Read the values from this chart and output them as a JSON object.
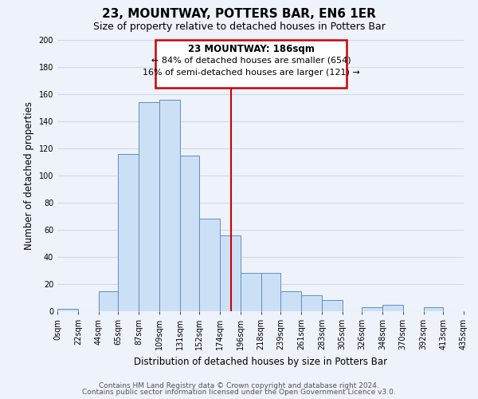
{
  "title": "23, MOUNTWAY, POTTERS BAR, EN6 1ER",
  "subtitle": "Size of property relative to detached houses in Potters Bar",
  "xlabel": "Distribution of detached houses by size in Potters Bar",
  "ylabel": "Number of detached properties",
  "bar_edges": [
    0,
    22,
    44,
    65,
    87,
    109,
    131,
    152,
    174,
    196,
    218,
    239,
    261,
    283,
    305,
    326,
    348,
    370,
    392,
    413,
    435
  ],
  "bar_heights": [
    2,
    0,
    15,
    116,
    154,
    156,
    115,
    68,
    56,
    28,
    28,
    15,
    12,
    8,
    0,
    3,
    5,
    0,
    3,
    0
  ],
  "bar_color": "#cce0f5",
  "bar_edge_color": "#5b8ec5",
  "vline_x": 186,
  "vline_color": "#cc0000",
  "annotation_lines": [
    "23 MOUNTWAY: 186sqm",
    "← 84% of detached houses are smaller (654)",
    "16% of semi-detached houses are larger (121) →"
  ],
  "xlim": [
    0,
    435
  ],
  "ylim": [
    0,
    200
  ],
  "xtick_labels": [
    "0sqm",
    "22sqm",
    "44sqm",
    "65sqm",
    "87sqm",
    "109sqm",
    "131sqm",
    "152sqm",
    "174sqm",
    "196sqm",
    "218sqm",
    "239sqm",
    "261sqm",
    "283sqm",
    "305sqm",
    "326sqm",
    "348sqm",
    "370sqm",
    "392sqm",
    "413sqm",
    "435sqm"
  ],
  "xtick_positions": [
    0,
    22,
    44,
    65,
    87,
    109,
    131,
    152,
    174,
    196,
    218,
    239,
    261,
    283,
    305,
    326,
    348,
    370,
    392,
    413,
    435
  ],
  "ytick_positions": [
    0,
    20,
    40,
    60,
    80,
    100,
    120,
    140,
    160,
    180,
    200
  ],
  "footer_lines": [
    "Contains HM Land Registry data © Crown copyright and database right 2024.",
    "Contains public sector information licensed under the Open Government Licence v3.0."
  ],
  "background_color": "#eef2fa",
  "grid_color": "#d0d8e8",
  "title_fontsize": 11,
  "subtitle_fontsize": 9,
  "axis_label_fontsize": 8.5,
  "tick_fontsize": 7,
  "footer_fontsize": 6.5,
  "annotation_fontsize_title": 8.5,
  "annotation_fontsize_body": 8
}
